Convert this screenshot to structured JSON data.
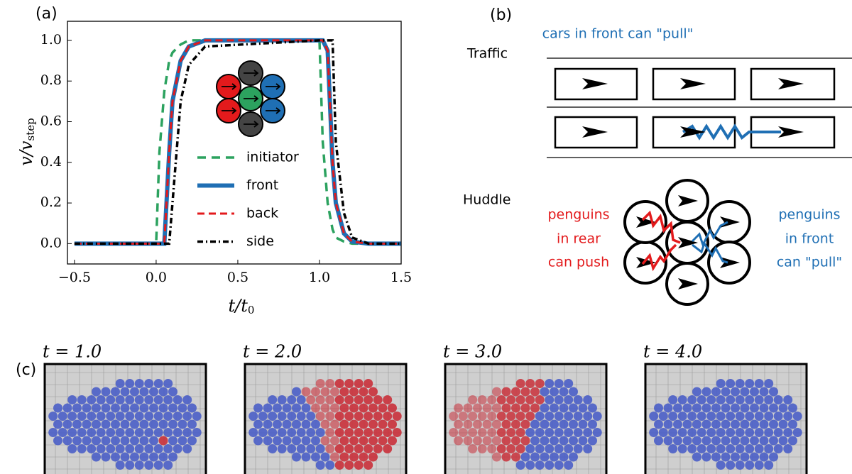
{
  "panel_labels": {
    "a": "(a)",
    "b": "(b)",
    "c": "(c)"
  },
  "chart_data": {
    "type": "line",
    "ylabel": {
      "main": "v/v",
      "sub": "step"
    },
    "xlabel": {
      "main": "t/t",
      "sub": "0"
    },
    "x": [
      -0.5,
      0,
      0.02,
      0.05,
      0.08,
      0.1,
      0.15,
      0.2,
      0.3,
      1.0,
      1.02,
      1.05,
      1.08,
      1.1,
      1.15,
      1.2,
      1.3,
      1.5
    ],
    "series": [
      {
        "name": "initiator",
        "color": "#2ca25f",
        "dash": "12 8",
        "width": 3.5,
        "values": [
          0,
          0,
          0.45,
          0.75,
          0.9,
          0.94,
          0.98,
          1,
          1,
          1,
          0.5,
          0.2,
          0.07,
          0.03,
          0.01,
          0,
          0,
          0
        ]
      },
      {
        "name": "front",
        "color": "#1f6fb4",
        "dash": "none",
        "width": 6,
        "values": [
          0,
          0,
          0,
          0,
          0.45,
          0.7,
          0.9,
          0.97,
          1,
          1,
          1,
          0.95,
          0.4,
          0.2,
          0.05,
          0.01,
          0,
          0
        ]
      },
      {
        "name": "back",
        "color": "#e31a1c",
        "dash": "10 6",
        "width": 3,
        "values": [
          0,
          0,
          0,
          0,
          0.45,
          0.7,
          0.9,
          0.97,
          1,
          1,
          1,
          0.95,
          0.4,
          0.2,
          0.05,
          0.01,
          0,
          0
        ]
      },
      {
        "name": "side",
        "color": "#000000",
        "dash": "8 4 2 4",
        "width": 3.5,
        "values": [
          0,
          0,
          0,
          0,
          0,
          0.2,
          0.7,
          0.88,
          0.97,
          1,
          1,
          1,
          1,
          0.5,
          0.15,
          0.03,
          0,
          0
        ]
      }
    ],
    "xlim": [
      -0.543,
      1.5
    ],
    "ylim": [
      -0.1,
      1.094
    ],
    "xticks": [
      {
        "value": -0.5,
        "label": "−0.5"
      },
      {
        "value": 0,
        "label": "0.0"
      },
      {
        "value": 0.5,
        "label": "0.5"
      },
      {
        "value": 1,
        "label": "1.0"
      },
      {
        "value": 1.5,
        "label": "1.5"
      }
    ],
    "yticks": [
      {
        "value": 0,
        "label": "0.0"
      },
      {
        "value": 0.2,
        "label": "0.2"
      },
      {
        "value": 0.4,
        "label": "0.4"
      },
      {
        "value": 0.6,
        "label": "0.6"
      },
      {
        "value": 0.8,
        "label": "0.8"
      },
      {
        "value": 1,
        "label": "1.0"
      }
    ]
  },
  "diagram": {
    "traffic_label": "Traffic",
    "traffic_note": "cars in front can \"pull\"",
    "huddle_label": "Huddle",
    "push_note": [
      "penguins",
      "in rear",
      "can push"
    ],
    "pull_note": [
      "penguins",
      "in front",
      "can \"pull\""
    ]
  },
  "snapshots": {
    "titles": [
      "t = 1.0",
      "t = 2.0",
      "t = 3.0",
      "t = 4.0"
    ],
    "blue": "#4a5ec6",
    "red": "#c9303a"
  }
}
